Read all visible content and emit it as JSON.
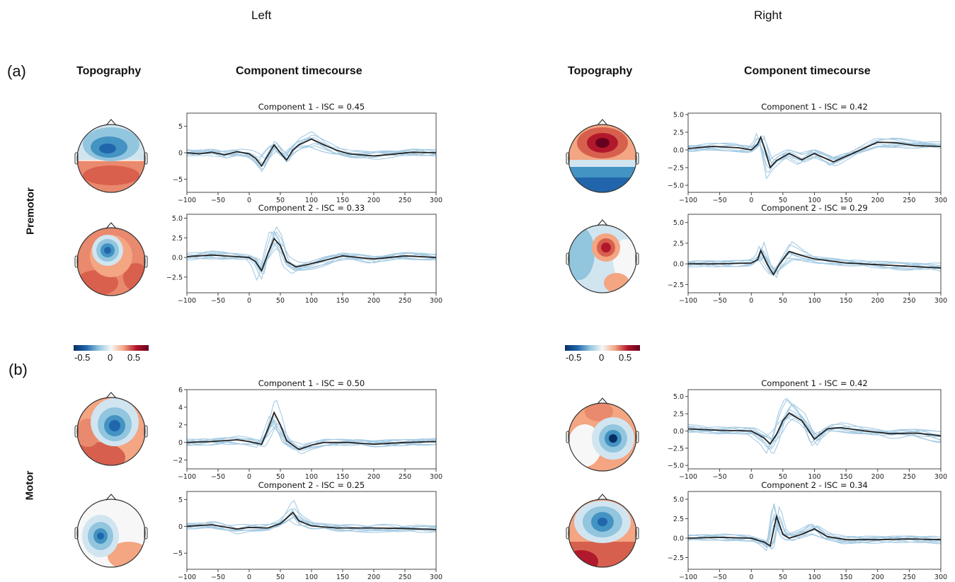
{
  "header": {
    "left": "Left",
    "right": "Right"
  },
  "panels": [
    {
      "label": "(a)",
      "row_label": "Premotor"
    },
    {
      "label": "(b)",
      "row_label": "Motor"
    }
  ],
  "columns": {
    "topography": "Topography",
    "timecourse": "Component timecourse"
  },
  "colorbar": {
    "ticks": [
      "-0.5",
      "0",
      "0.5"
    ],
    "range": [
      -0.7,
      0.7
    ],
    "colormap": "RdBu_r",
    "colors": [
      "#2166ac",
      "#f7f7f7",
      "#b2182b"
    ]
  },
  "chart_data": [
    {
      "type": "line",
      "title": "Component 1 - ISC = 0.45",
      "side": "Left",
      "region": "Premotor",
      "x_ticks": [
        -100,
        -50,
        0,
        50,
        100,
        150,
        200,
        250,
        300
      ],
      "y_ticks": [
        5,
        0,
        -5
      ],
      "ylim": [
        -7.5,
        7.5
      ],
      "xlim": [
        -100,
        300
      ],
      "mean": [
        [
          -100,
          0
        ],
        [
          -80,
          -0.2
        ],
        [
          -60,
          0.1
        ],
        [
          -40,
          -0.4
        ],
        [
          -20,
          0.2
        ],
        [
          0,
          -0.2
        ],
        [
          10,
          -1
        ],
        [
          20,
          -2.5
        ],
        [
          30,
          -0.5
        ],
        [
          40,
          1.5
        ],
        [
          50,
          0
        ],
        [
          60,
          -1.4
        ],
        [
          70,
          0.5
        ],
        [
          80,
          1.5
        ],
        [
          100,
          2.6
        ],
        [
          120,
          1.5
        ],
        [
          140,
          0.5
        ],
        [
          160,
          -0.2
        ],
        [
          200,
          -0.6
        ],
        [
          230,
          -0.3
        ],
        [
          260,
          0.1
        ],
        [
          300,
          0
        ]
      ]
    },
    {
      "type": "line",
      "title": "Component 2 - ISC = 0.33",
      "side": "Left",
      "region": "Premotor",
      "x_ticks": [
        -100,
        -50,
        0,
        50,
        100,
        150,
        200,
        250,
        300
      ],
      "y_ticks": [
        5.0,
        2.5,
        0.0,
        -2.5
      ],
      "ylim": [
        -4.5,
        5.5
      ],
      "xlim": [
        -100,
        300
      ],
      "mean": [
        [
          -100,
          0.1
        ],
        [
          -60,
          0.3
        ],
        [
          -20,
          0.1
        ],
        [
          0,
          0
        ],
        [
          10,
          -0.5
        ],
        [
          20,
          -1.7
        ],
        [
          30,
          0.5
        ],
        [
          40,
          2.4
        ],
        [
          50,
          1.5
        ],
        [
          60,
          -0.5
        ],
        [
          75,
          -1.2
        ],
        [
          100,
          -0.8
        ],
        [
          150,
          0.2
        ],
        [
          200,
          -0.2
        ],
        [
          250,
          0.2
        ],
        [
          300,
          0
        ]
      ]
    },
    {
      "type": "line",
      "title": "Component 1 - ISC = 0.42",
      "side": "Right",
      "region": "Premotor",
      "x_ticks": [
        -100,
        -50,
        0,
        50,
        100,
        150,
        200,
        250,
        300
      ],
      "y_ticks": [
        5.0,
        2.5,
        0.0,
        -2.5,
        -5.0
      ],
      "ylim": [
        -6,
        5.2
      ],
      "xlim": [
        -100,
        300
      ],
      "mean": [
        [
          -100,
          0.2
        ],
        [
          -60,
          0.5
        ],
        [
          -20,
          0.3
        ],
        [
          0,
          0
        ],
        [
          10,
          0.8
        ],
        [
          15,
          1.8
        ],
        [
          20,
          0.5
        ],
        [
          30,
          -2.5
        ],
        [
          40,
          -1.5
        ],
        [
          50,
          -1
        ],
        [
          60,
          -0.5
        ],
        [
          80,
          -1.4
        ],
        [
          100,
          -0.5
        ],
        [
          130,
          -1.7
        ],
        [
          160,
          -0.5
        ],
        [
          200,
          1.1
        ],
        [
          230,
          1
        ],
        [
          260,
          0.6
        ],
        [
          300,
          0.5
        ]
      ]
    },
    {
      "type": "line",
      "title": "Component 2 - ISC = 0.29",
      "side": "Right",
      "region": "Premotor",
      "x_ticks": [
        -100,
        -50,
        0,
        50,
        100,
        150,
        200,
        250,
        300
      ],
      "y_ticks": [
        5.0,
        2.5,
        0.0,
        -2.5
      ],
      "ylim": [
        -3.5,
        6
      ],
      "xlim": [
        -100,
        300
      ],
      "mean": [
        [
          -100,
          0
        ],
        [
          -50,
          0
        ],
        [
          0,
          0.1
        ],
        [
          10,
          0.5
        ],
        [
          15,
          1.6
        ],
        [
          25,
          0
        ],
        [
          35,
          -1.3
        ],
        [
          45,
          0
        ],
        [
          60,
          1.5
        ],
        [
          80,
          1
        ],
        [
          100,
          0.6
        ],
        [
          150,
          0.1
        ],
        [
          200,
          -0.1
        ],
        [
          250,
          -0.3
        ],
        [
          300,
          -0.5
        ]
      ]
    },
    {
      "type": "line",
      "title": "Component 1 - ISC = 0.50",
      "side": "Left",
      "region": "Motor",
      "x_ticks": [
        -100,
        -50,
        0,
        50,
        100,
        150,
        200,
        250,
        300
      ],
      "y_ticks": [
        6,
        4,
        2,
        0,
        -2
      ],
      "ylim": [
        -3,
        6
      ],
      "xlim": [
        -100,
        300
      ],
      "mean": [
        [
          -100,
          0
        ],
        [
          -60,
          0.1
        ],
        [
          -20,
          0.3
        ],
        [
          0,
          0.1
        ],
        [
          20,
          -0.2
        ],
        [
          30,
          1.5
        ],
        [
          40,
          3.4
        ],
        [
          50,
          2
        ],
        [
          60,
          0.2
        ],
        [
          80,
          -0.8
        ],
        [
          100,
          -0.3
        ],
        [
          120,
          0
        ],
        [
          160,
          0
        ],
        [
          200,
          -0.2
        ],
        [
          250,
          0
        ],
        [
          300,
          0.1
        ]
      ]
    },
    {
      "type": "line",
      "title": "Component 2 - ISC = 0.25",
      "side": "Left",
      "region": "Motor",
      "x_ticks": [
        -100,
        -50,
        0,
        50,
        100,
        150,
        200,
        250,
        300
      ],
      "y_ticks": [
        5,
        0,
        -5
      ],
      "ylim": [
        -8,
        6.5
      ],
      "xlim": [
        -100,
        300
      ],
      "mean": [
        [
          -100,
          0
        ],
        [
          -60,
          0.3
        ],
        [
          -20,
          -0.5
        ],
        [
          0,
          -0.2
        ],
        [
          30,
          -0.3
        ],
        [
          50,
          0.5
        ],
        [
          60,
          1.5
        ],
        [
          70,
          2.6
        ],
        [
          80,
          1
        ],
        [
          100,
          0.1
        ],
        [
          140,
          -0.3
        ],
        [
          200,
          -0.3
        ],
        [
          250,
          -0.4
        ],
        [
          300,
          -0.6
        ]
      ]
    },
    {
      "type": "line",
      "title": "Component 1 - ISC = 0.42",
      "side": "Right",
      "region": "Motor",
      "x_ticks": [
        -100,
        -50,
        0,
        50,
        100,
        150,
        200,
        250,
        300
      ],
      "y_ticks": [
        5.0,
        2.5,
        0.0,
        -2.5,
        -5.0
      ],
      "ylim": [
        -5.5,
        6
      ],
      "xlim": [
        -100,
        300
      ],
      "mean": [
        [
          -100,
          0.3
        ],
        [
          -50,
          0.1
        ],
        [
          0,
          0
        ],
        [
          20,
          -1
        ],
        [
          30,
          -1.9
        ],
        [
          40,
          -0.5
        ],
        [
          50,
          1.5
        ],
        [
          60,
          2.6
        ],
        [
          80,
          1.5
        ],
        [
          100,
          -1.2
        ],
        [
          120,
          0.3
        ],
        [
          140,
          0.5
        ],
        [
          180,
          0
        ],
        [
          220,
          -0.4
        ],
        [
          260,
          -0.3
        ],
        [
          300,
          -0.7
        ]
      ]
    },
    {
      "type": "line",
      "title": "Component 2 - ISC = 0.34",
      "side": "Right",
      "region": "Motor",
      "x_ticks": [
        -100,
        -50,
        0,
        50,
        100,
        150,
        200,
        250,
        300
      ],
      "y_ticks": [
        5.0,
        2.5,
        0.0,
        -2.5
      ],
      "ylim": [
        -4,
        6
      ],
      "xlim": [
        -100,
        300
      ],
      "mean": [
        [
          -100,
          0
        ],
        [
          -50,
          0.1
        ],
        [
          0,
          0
        ],
        [
          20,
          -0.5
        ],
        [
          30,
          -1
        ],
        [
          40,
          2.8
        ],
        [
          50,
          0.5
        ],
        [
          60,
          0
        ],
        [
          80,
          0.5
        ],
        [
          100,
          1.2
        ],
        [
          120,
          0.2
        ],
        [
          150,
          -0.2
        ],
        [
          200,
          -0.2
        ],
        [
          250,
          -0.1
        ],
        [
          300,
          -0.2
        ]
      ]
    }
  ]
}
